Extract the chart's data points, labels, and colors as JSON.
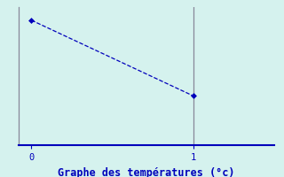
{
  "title": "Graphe des températures (°c)",
  "x_data": [
    0,
    1
  ],
  "y_data": [
    3.5,
    1.2
  ],
  "xlim": [
    -0.08,
    1.5
  ],
  "ylim": [
    -0.3,
    3.9
  ],
  "line_color": "#0000bb",
  "marker_color": "#0000bb",
  "bg_color": "#d5f2ee",
  "outer_bg": "#d5f2ee",
  "axis_color": "#8888aa",
  "title_color": "#0000bb",
  "title_fontsize": 8.5,
  "tick_label_color": "#0000bb",
  "tick_fontsize": 7.5,
  "x_ticks": [
    0,
    1
  ],
  "bottom_spine_color": "#0000bb",
  "left_spine_color": "#888899",
  "vline_color": "#888899"
}
